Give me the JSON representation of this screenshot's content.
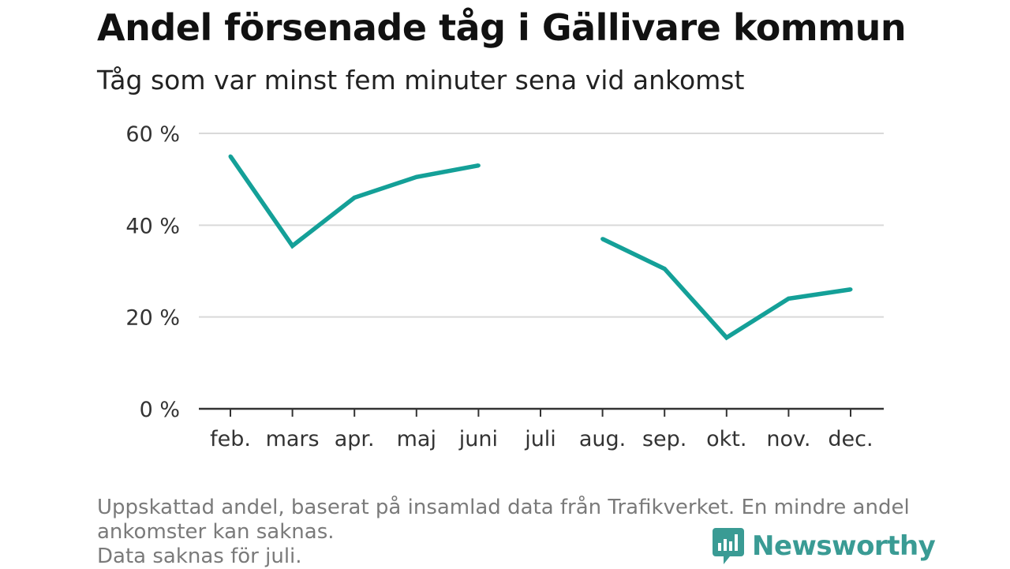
{
  "title": "Andel försenade tåg i Gällivare kommun",
  "subtitle": "Tåg som var minst fem minuter sena vid ankomst",
  "notes": [
    "Uppskattad andel, baserat på insamlad data från Trafikverket. En mindre andel",
    "ankomster kan saknas.",
    "Data saknas för juli."
  ],
  "brand": {
    "name": "Newsworthy",
    "color": "#3a9b94",
    "icon": "newsworthy-logo-icon"
  },
  "colors": {
    "line": "#14a098",
    "grid": "#d9d9d9",
    "axis": "#333333",
    "tick_text": "#333333"
  },
  "chart_data": {
    "type": "line",
    "categories": [
      "feb.",
      "mars",
      "apr.",
      "maj",
      "juni",
      "juli",
      "aug.",
      "sep.",
      "okt.",
      "nov.",
      "dec."
    ],
    "series": [
      {
        "values": [
          55,
          35.5,
          46,
          50.5,
          53,
          null,
          37,
          30.5,
          15.5,
          24,
          26
        ]
      }
    ],
    "ylim": [
      0,
      60
    ],
    "yticks": [
      0,
      20,
      40,
      60
    ],
    "ytick_labels": [
      "0 %",
      "20 %",
      "40 %",
      "60 %"
    ],
    "xlabel": "",
    "ylabel": "",
    "grid": true
  }
}
